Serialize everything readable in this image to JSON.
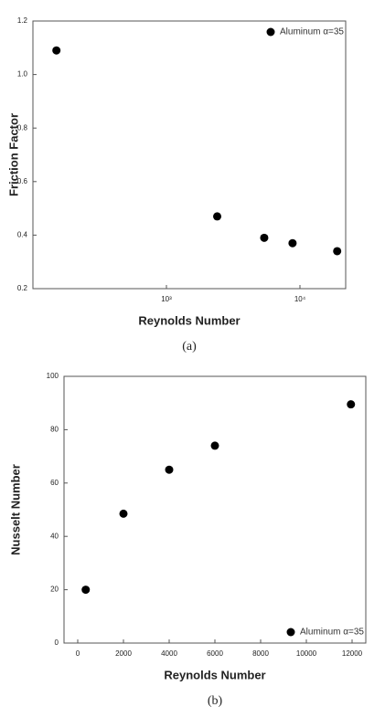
{
  "chart_data": [
    {
      "type": "scatter",
      "xlabel": "Reynolds Number",
      "ylabel": "Friction Factor",
      "caption": "(a)",
      "x": [
        150,
        2400,
        5400,
        8800,
        19000
      ],
      "series": [
        {
          "name": "Aluminum α=35",
          "color": "#000000",
          "values": [
            1.09,
            0.47,
            0.39,
            0.37,
            0.34
          ]
        }
      ],
      "xscale": "log",
      "xlim": [
        100,
        22000
      ],
      "ylim": [
        0.2,
        1.2
      ],
      "xticks": [
        {
          "value": 1000,
          "label": "10³"
        },
        {
          "value": 10000,
          "label": "10⁴"
        }
      ],
      "yticks": [
        0.2,
        0.4,
        0.6,
        0.8,
        {
          "value": 1,
          "label": "1.0"
        },
        1.2
      ],
      "legend": "upper right"
    },
    {
      "type": "scatter",
      "xlabel": "Reynolds Number",
      "ylabel": "Nusselt Number",
      "caption": "(b)",
      "x": [
        350,
        2000,
        4000,
        6000,
        11950
      ],
      "series": [
        {
          "name": "Aluminum α=35",
          "color": "#000000",
          "values": [
            20,
            48.5,
            65,
            74,
            89.5
          ]
        }
      ],
      "xscale": "linear",
      "xlim": [
        -600,
        12600
      ],
      "ylim": [
        0,
        100
      ],
      "xticks": [
        0,
        2000,
        4000,
        6000,
        8000,
        10000,
        12000
      ],
      "yticks": [
        0,
        20,
        40,
        60,
        80,
        100
      ],
      "legend": "lower right"
    }
  ]
}
